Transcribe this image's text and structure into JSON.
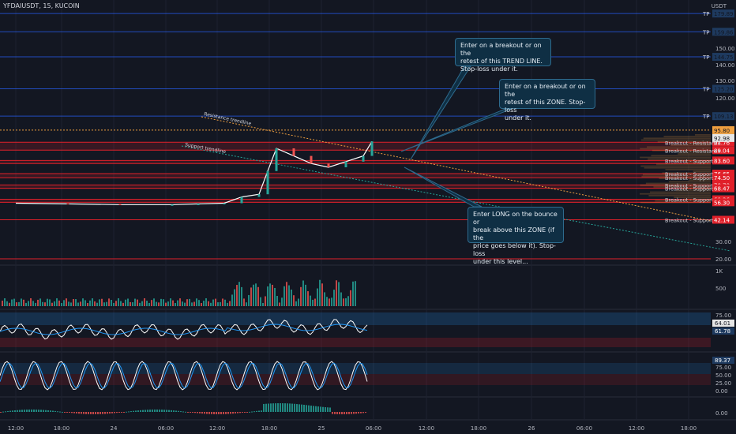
{
  "header": {
    "symbol": "YFDAIUSDT, 15, KUCOIN",
    "currency": "USDT"
  },
  "colors": {
    "background": "#131722",
    "grid": "#1e2230",
    "axis_text": "#b2b5be",
    "tp_line": "#2962ff",
    "red_line": "#e0202a",
    "orange_line": "#f0a040",
    "up": "#26a69a",
    "down": "#ef5350",
    "price_line": "#ffffff",
    "ema_blue": "#2196f3",
    "callout_bg": "#0f2f44"
  },
  "chart_data": [
    {
      "type": "line",
      "panel": "price",
      "x": [
        "12:00",
        "18:00",
        "24",
        "06:00",
        "12:00",
        "18:00",
        "25",
        "06:00",
        "12:00",
        "18:00",
        "26",
        "06:00",
        "12:00",
        "18:00"
      ],
      "yticks": [
        150.0,
        140.0,
        130.0,
        120.0,
        30.0,
        20.0
      ],
      "price_series": [
        {
          "x": "23 12:00",
          "y": 55
        },
        {
          "x": "23 18:00",
          "y": 54
        },
        {
          "x": "24 00:00",
          "y": 53
        },
        {
          "x": "24 06:00",
          "y": 53
        },
        {
          "x": "24 09:00",
          "y": 54
        },
        {
          "x": "24 12:00",
          "y": 55
        },
        {
          "x": "24 14:00",
          "y": 62
        },
        {
          "x": "24 16:00",
          "y": 64
        },
        {
          "x": "24 17:00",
          "y": 78
        },
        {
          "x": "24 18:00",
          "y": 90
        },
        {
          "x": "24 20:00",
          "y": 86
        },
        {
          "x": "24 22:00",
          "y": 82
        },
        {
          "x": "25 00:00",
          "y": 80
        },
        {
          "x": "25 02:00",
          "y": 83
        },
        {
          "x": "25 04:00",
          "y": 86
        },
        {
          "x": "25 05:00",
          "y": 92
        }
      ],
      "price_badges": [
        {
          "label": "TP",
          "value": "179.89"
        },
        {
          "label": "TP",
          "value": "159.86"
        },
        {
          "label": "TP",
          "value": "144.75"
        },
        {
          "label": "TP",
          "value": "125.20"
        },
        {
          "label": "TP",
          "value": "109.13"
        },
        {
          "label": "",
          "value": "95.80"
        },
        {
          "label": "Breakout - Resistance",
          "value": "91.76"
        },
        {
          "label": "Breakout - Resistance",
          "value": "89.04"
        },
        {
          "label": "",
          "value": "92.98"
        },
        {
          "label": "Breakout - Support",
          "value": "83.60"
        },
        {
          "label": "Breakout - Support",
          "value": "76.65"
        },
        {
          "label": "Breakout - Support",
          "value": "74.50"
        },
        {
          "label": "Breakout - Support",
          "value": "70.70"
        },
        {
          "label": "Breakout - Support",
          "value": "68.47"
        },
        {
          "label": "Breakout - Support",
          "value": "60.26"
        },
        {
          "label": "",
          "value": "56.30"
        },
        {
          "label": "Breakout - Support",
          "value": "42.14"
        }
      ],
      "annotations": [
        "Resistance trendline",
        "Support trendline"
      ]
    },
    {
      "type": "bar",
      "panel": "volume",
      "yticks": [
        "1K",
        "500"
      ]
    },
    {
      "type": "line",
      "panel": "rsi",
      "yticks": [
        "75.00",
        "64.01",
        "61.78"
      ]
    },
    {
      "type": "line",
      "panel": "stochastic",
      "yticks": [
        "89.37",
        "75.00",
        "50.00",
        "25.00",
        "0.00"
      ]
    },
    {
      "type": "bar",
      "panel": "macd",
      "yticks": [
        "0.00"
      ]
    }
  ],
  "callouts": [
    {
      "id": "trendline",
      "text": "Enter on a breakout or on the\nretest of this TREND LINE.\nStop-loss under it."
    },
    {
      "id": "zone",
      "text": "Enter on a breakout or on the\nretest of this ZONE. Stop-loss\nunder it."
    },
    {
      "id": "long",
      "text": "Enter LONG on the bounce or\nbreak above this ZONE (if the\nprice goes below it). Stop-loss\nunder this level..."
    }
  ]
}
